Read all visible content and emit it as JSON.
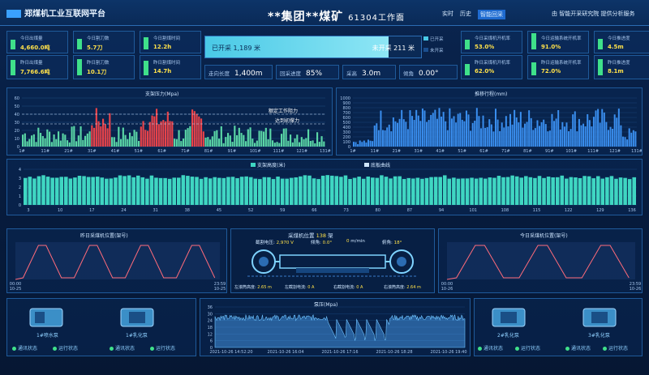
{
  "header": {
    "brand": "郑煤机工业互联网平台",
    "title_main": "**集团**煤矿",
    "title_sub": "61304工作面",
    "nav": [
      "实时",
      "历史",
      "智能回采"
    ],
    "provider": "由 智能开采研究院 提供分析服务"
  },
  "left_stats": [
    {
      "label": "今日出煤量",
      "value": "4,660.0吨",
      "fill": 0.55
    },
    {
      "label": "今日割刀数",
      "value": "5.7刀",
      "fill": 0.6
    },
    {
      "label": "今日割煤时间",
      "value": "12.2h",
      "fill": 0.7
    },
    {
      "label": "昨日出煤量",
      "value": "7,766.6吨",
      "fill": 0.85
    },
    {
      "label": "昨日割刀数",
      "value": "10.1刀",
      "fill": 0.9
    },
    {
      "label": "昨日割煤时间",
      "value": "14.7h",
      "fill": 0.8
    }
  ],
  "progress": {
    "mined_text": "已开采 1,189 米",
    "remaining_text": "未开采 211 米",
    "mined_fraction": 0.85,
    "legend": [
      "已开采",
      "未开采"
    ]
  },
  "kv": [
    {
      "label": "走向长度",
      "value": "1,400m"
    },
    {
      "label": "回采进度",
      "value": "85%"
    },
    {
      "label": "采高",
      "value": "3.0m"
    },
    {
      "label": "倾角",
      "value": "0.00°"
    }
  ],
  "right_stats": [
    {
      "label": "今日采煤机开机率",
      "value": "53.0%",
      "fill": 0.53
    },
    {
      "label": "今日运输系统开机率",
      "value": "91.0%",
      "fill": 0.91
    },
    {
      "label": "今日推进度",
      "value": "4.5m",
      "fill": 0.6
    },
    {
      "label": "昨日采煤机开机率",
      "value": "62.0%",
      "fill": 0.62
    },
    {
      "label": "昨日运输系统开机率",
      "value": "72.0%",
      "fill": 0.72
    },
    {
      "label": "昨日推进度",
      "value": "8.1m",
      "fill": 0.9
    }
  ],
  "charts": {
    "pressure": {
      "title": "支架压力(Mpa)",
      "y_ticks": [
        "0",
        "10",
        "20",
        "30",
        "40",
        "50",
        "60"
      ],
      "x_ticks": [
        "1#",
        "11#",
        "21#",
        "31#",
        "41#",
        "51#",
        "61#",
        "71#",
        "81#",
        "91#",
        "101#",
        "111#",
        "121#",
        "131#"
      ],
      "annotations": [
        "额定工作阻力",
        "达到初撑力"
      ]
    },
    "stroke": {
      "title": "推移行程(mm)",
      "y_ticks": [
        "0",
        "100",
        "200",
        "300",
        "400",
        "500",
        "600",
        "700",
        "800",
        "900",
        "1000"
      ],
      "x_ticks": [
        "1#",
        "11#",
        "21#",
        "31#",
        "41#",
        "51#",
        "61#",
        "71#",
        "81#",
        "91#",
        "101#",
        "111#",
        "121#",
        "131#"
      ]
    },
    "height": {
      "legend": [
        "支架高度(米)",
        "底板曲线"
      ],
      "y_ticks": [
        "0",
        "1",
        "2",
        "3",
        "4"
      ],
      "x_ticks": [
        "3",
        "10",
        "17",
        "24",
        "31",
        "38",
        "45",
        "52",
        "59",
        "66",
        "73",
        "80",
        "87",
        "94",
        "101",
        "108",
        "115",
        "122",
        "129",
        "136"
      ]
    },
    "left_pos": {
      "title": "昨日采煤机位置(架号)",
      "x_start": "00:00\n10-25",
      "x_end": "23:59\n10-25"
    },
    "right_pos": {
      "title": "今日采煤机位置(架号)",
      "x_start": "00:00\n10-26",
      "x_end": "23:59\n10-26"
    },
    "pump": {
      "title": "泵压(Mpa)",
      "y_ticks": [
        "0",
        "6",
        "12",
        "18",
        "24",
        "30",
        "36"
      ],
      "x_ticks": [
        "2021-10-26 14:52:20",
        "2021-10-26 16:04",
        "2021-10-26 17:16",
        "2021-10-26 18:28",
        "2021-10-26 19:40"
      ]
    }
  },
  "shearer": {
    "position_label": "采煤机位置",
    "position_value": "138",
    "position_unit": "架",
    "left_voltage_label": "截割电压:",
    "left_voltage_value": "2,970 V",
    "tilt_label": "倾角:",
    "tilt_value": "0.0°",
    "speed_value": "0",
    "speed_unit": "m/min",
    "pitch_label": "俯角:",
    "pitch_value": "18°",
    "front_drum_label": "左滚筒高度:",
    "front_drum_value": "2.65 m",
    "left_current_label": "左截割电流:",
    "left_current_value": "0 A",
    "right_current_label": "右截割电流:",
    "right_current_value": "0 A",
    "rear_drum_label": "右滚筒高度:",
    "rear_drum_value": "2.64 m"
  },
  "devices": {
    "left": [
      {
        "name": "1#喷水泵",
        "status": [
          "通讯状态",
          "运行状态"
        ]
      },
      {
        "name": "1#乳化泵",
        "status": [
          "通讯状态",
          "运行状态"
        ]
      }
    ],
    "right": [
      {
        "name": "2#乳化泵",
        "status": [
          "通讯状态",
          "运行状态"
        ]
      },
      {
        "name": "3#乳化泵",
        "status": [
          "通讯状态",
          "运行状态"
        ]
      }
    ]
  }
}
